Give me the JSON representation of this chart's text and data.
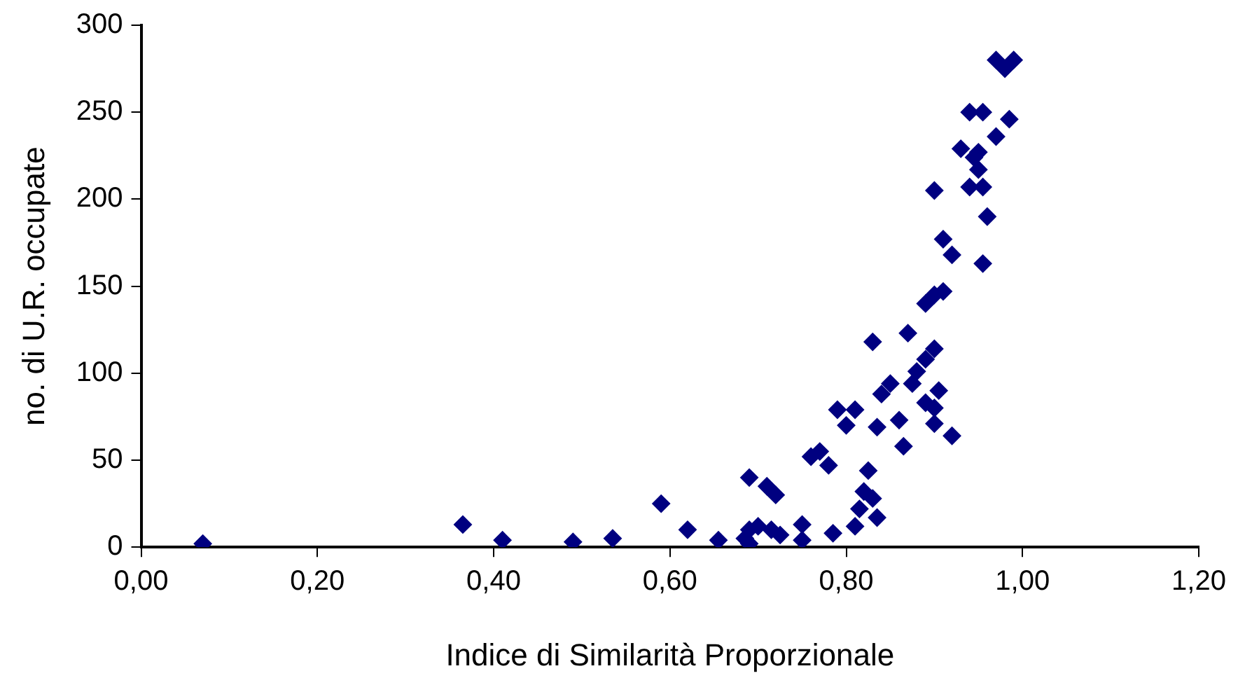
{
  "chart_data": {
    "type": "scatter",
    "xlabel": "Indice di Similarità Proporzionale",
    "ylabel": "no. di U.R. occupate",
    "xlim": [
      0,
      1.2
    ],
    "ylim": [
      0,
      300
    ],
    "xticks": [
      {
        "value": 0,
        "label": "0,00"
      },
      {
        "value": 0.2,
        "label": "0,20"
      },
      {
        "value": 0.4,
        "label": "0,40"
      },
      {
        "value": 0.6,
        "label": "0,60"
      },
      {
        "value": 0.8,
        "label": "0,80"
      },
      {
        "value": 1,
        "label": "1,00"
      },
      {
        "value": 1.2,
        "label": "1,20"
      }
    ],
    "yticks": [
      0,
      50,
      100,
      150,
      200,
      250,
      300
    ],
    "grid": false,
    "legend": false,
    "marker": "diamond",
    "series": [
      {
        "color": "#000080",
        "x": [
          0.07,
          0.365,
          0.41,
          0.49,
          0.535,
          0.59,
          0.62,
          0.655,
          0.69,
          0.69,
          0.69,
          0.685,
          0.7,
          0.71,
          0.72,
          0.715,
          0.725,
          0.75,
          0.75,
          0.785,
          0.81,
          0.815,
          0.82,
          0.825,
          0.83,
          0.835,
          0.76,
          0.77,
          0.78,
          0.79,
          0.8,
          0.81,
          0.83,
          0.835,
          0.84,
          0.85,
          0.86,
          0.865,
          0.87,
          0.875,
          0.88,
          0.89,
          0.9,
          0.9,
          0.89,
          0.9,
          0.905,
          0.9,
          0.92,
          0.89,
          0.9,
          0.91,
          0.91,
          0.92,
          0.94,
          0.955,
          0.945,
          0.95,
          0.93,
          0.94,
          0.95,
          0.955,
          0.96,
          0.955,
          0.97,
          0.98,
          0.99,
          0.985,
          0.97
        ],
        "values": [
          2,
          13,
          4,
          3,
          5,
          25,
          10,
          4,
          40,
          10,
          2,
          5,
          12,
          35,
          30,
          10,
          7,
          13,
          4,
          8,
          12,
          22,
          32,
          44,
          28,
          17,
          52,
          55,
          47,
          79,
          70,
          79,
          118,
          69,
          88,
          94,
          73,
          58,
          123,
          94,
          101,
          108,
          205,
          114,
          83,
          71,
          90,
          80,
          64,
          140,
          145,
          147,
          177,
          168,
          250,
          250,
          224,
          227,
          229,
          207,
          217,
          207,
          190,
          163,
          280,
          275,
          280,
          246,
          236
        ]
      }
    ]
  }
}
